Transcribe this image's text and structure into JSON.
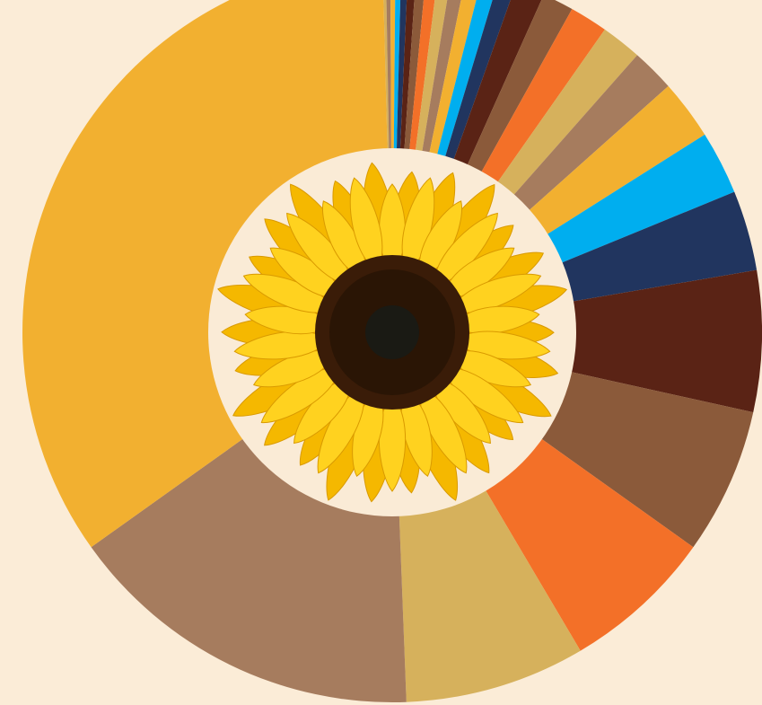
{
  "chart_data": {
    "type": "pie",
    "values": [
      0.5,
      0.7,
      0.8,
      0.9,
      1.1,
      1.3,
      1.6,
      1.9,
      2.1,
      2.3,
      2.5,
      2.6,
      2.8,
      4.6,
      4.9,
      6.0,
      6.4,
      6.8,
      9.4,
      10,
      12.6,
      22.2,
      23,
      23.9,
      28.4,
      56.7,
      124
    ],
    "colors": [
      "#d6b15c",
      "#a67c5e",
      "#f2b030",
      "#00aeef",
      "#21355f",
      "#5a2315",
      "#8b5a3a",
      "#f37028",
      "#d6b15c",
      "#a67c5e",
      "#f2b030",
      "#00aeef",
      "#21355f",
      "#5a2315",
      "#8b5a3a",
      "#f37028",
      "#d6b15c",
      "#a67c5e",
      "#f2b030",
      "#00aeef",
      "#21355f",
      "#5a2315",
      "#8b5a3a",
      "#f37028",
      "#d6b15c",
      "#a67c5e",
      "#f2b030"
    ]
  }
}
